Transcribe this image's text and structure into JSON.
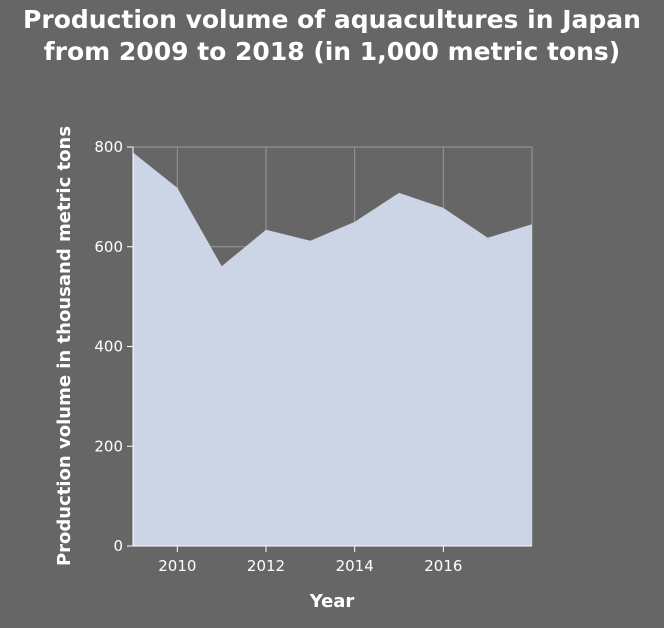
{
  "chart_data": {
    "type": "area",
    "title_lines": [
      "Production volume of aquacultures in Japan",
      "from 2009 to 2018 (in 1,000 metric tons)"
    ],
    "xlabel": "Year",
    "ylabel": "Production volume in thousand metric tons",
    "x": [
      2009,
      2010,
      2011,
      2012,
      2013,
      2014,
      2015,
      2016,
      2017,
      2018
    ],
    "series": [
      {
        "values": [
          789,
          718,
          561,
          634,
          612,
          650,
          708,
          678,
          618,
          645
        ]
      }
    ],
    "xlim": [
      2009,
      2018
    ],
    "ylim": [
      0,
      800
    ],
    "xticks": [
      2010,
      2012,
      2014,
      2016
    ],
    "yticks": [
      0,
      200,
      400,
      600,
      800
    ],
    "grid": true,
    "colors": {
      "background": "#666666",
      "area": "#ccd5e6",
      "grid": "#999999",
      "text": "#ffffff"
    }
  }
}
